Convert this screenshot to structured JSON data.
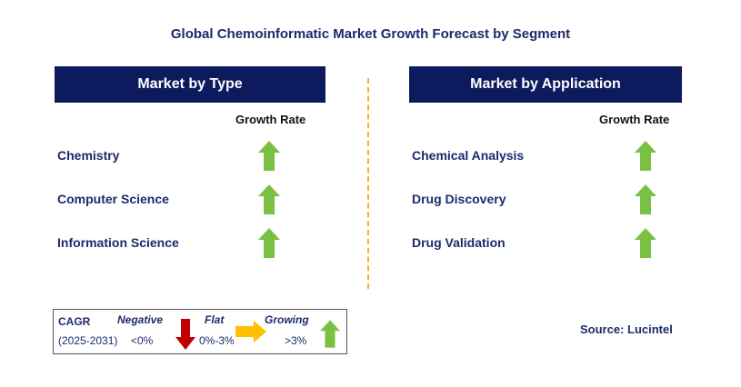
{
  "title": "Global Chemoinformatic Market Growth Forecast by Segment",
  "left": {
    "header": "Market by Type",
    "growth_label": "Growth Rate",
    "items": [
      {
        "label": "Chemistry",
        "trend": "growing"
      },
      {
        "label": "Computer Science",
        "trend": "growing"
      },
      {
        "label": "Information Science",
        "trend": "growing"
      }
    ]
  },
  "right": {
    "header": "Market by Application",
    "growth_label": "Growth Rate",
    "items": [
      {
        "label": "Chemical Analysis",
        "trend": "growing"
      },
      {
        "label": "Drug Discovery",
        "trend": "growing"
      },
      {
        "label": "Drug Validation",
        "trend": "growing"
      }
    ]
  },
  "legend": {
    "cagr": "CAGR",
    "period": "(2025-2031)",
    "negative": "Negative",
    "negative_range": "<0%",
    "flat": "Flat",
    "flat_range": "0%-3%",
    "growing": "Growing",
    "growing_range": ">3%"
  },
  "source": "Source: Lucintel",
  "colors": {
    "navy": "#0d1b5e",
    "green": "#7ac143",
    "red": "#c00000",
    "yellow": "#ffc000",
    "divider": "#f5b21a"
  }
}
